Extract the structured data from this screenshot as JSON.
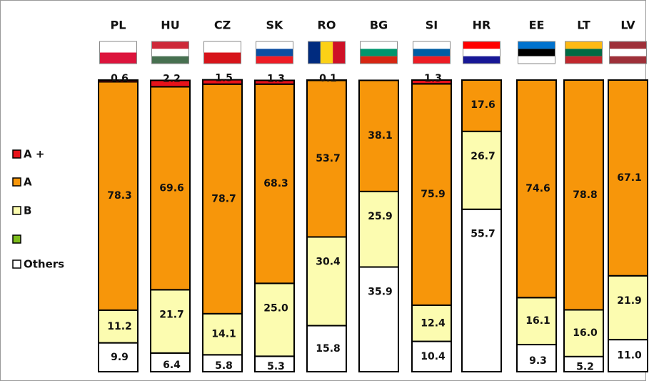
{
  "chart_data": {
    "type": "stacked_bar",
    "categories": [
      "PL",
      "HU",
      "CZ",
      "SK",
      "RO",
      "BG",
      "SI",
      "HR",
      "EE",
      "LT",
      "LV"
    ],
    "series": [
      {
        "name": "A +",
        "color": "#e8121a",
        "values": [
          0.6,
          2.2,
          1.5,
          1.3,
          0.1,
          null,
          1.3,
          null,
          null,
          null,
          null
        ],
        "value_labels": [
          "0.6",
          "2.2",
          "1.5",
          "1.3",
          "0.1",
          null,
          "1.3",
          null,
          null,
          null,
          null
        ]
      },
      {
        "name": "A",
        "color": "#f7960a",
        "values": [
          78.3,
          69.6,
          78.7,
          68.3,
          53.7,
          38.1,
          75.9,
          17.6,
          74.6,
          78.8,
          67.1
        ],
        "value_labels": [
          "78.3",
          "69.6",
          "78.7",
          "68.3",
          "53.7",
          "38.1",
          "75.9",
          "17.6",
          "74.6",
          "78.8",
          "67.1"
        ]
      },
      {
        "name": "B",
        "color": "#fcfcb0",
        "values": [
          11.2,
          21.7,
          14.1,
          25.0,
          30.4,
          25.9,
          12.4,
          26.7,
          16.1,
          16.0,
          21.9
        ],
        "value_labels": [
          "11.2",
          "21.7",
          "14.1",
          "25.0",
          "30.4",
          "25.9",
          "12.4",
          "26.7",
          "16.1",
          "16.0",
          "21.9"
        ]
      },
      {
        "color": "#7cbc1c",
        "values": [
          null,
          null,
          null,
          null,
          null,
          null,
          null,
          null,
          null,
          null,
          null
        ]
      },
      {
        "name": "Others",
        "color": "#ffffff",
        "values": [
          9.9,
          6.4,
          5.8,
          5.3,
          15.8,
          35.9,
          10.4,
          55.7,
          9.3,
          5.2,
          11.0
        ],
        "value_labels": [
          "9.9",
          "6.4",
          "5.8",
          "5.3",
          "15.8",
          "35.9",
          "10.4",
          "55.7",
          "9.3",
          "5.2",
          "11.0"
        ]
      }
    ]
  }
}
